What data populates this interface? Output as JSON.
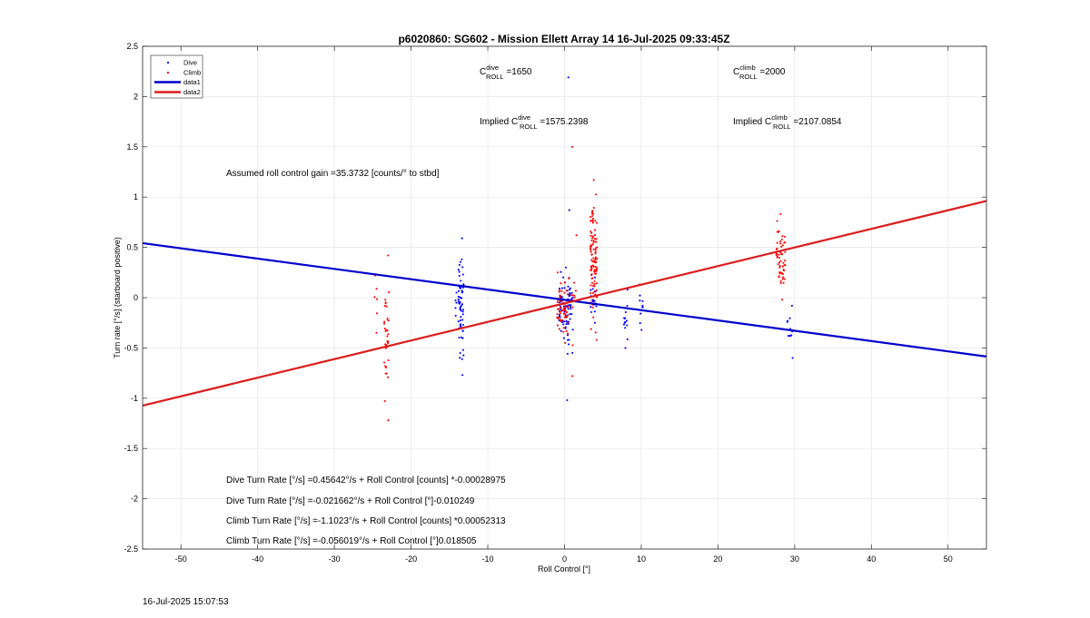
{
  "chart_data": {
    "type": "scatter",
    "title": "p6020860: SG602 - Mission Ellett Array 14 16-Jul-2025 09:33:45Z",
    "xlabel": "Roll Control [°]",
    "ylabel": "Turn rate [°/s] (starboard positive)",
    "xlim": [
      -55,
      55
    ],
    "ylim": [
      -2.5,
      2.5
    ],
    "xticks": [
      -50,
      -40,
      -30,
      -20,
      -10,
      0,
      10,
      20,
      30,
      40,
      50
    ],
    "yticks": [
      -2.5,
      -2,
      -1.5,
      -1,
      -0.5,
      0,
      0.5,
      1,
      1.5,
      2,
      2.5
    ],
    "grid": true,
    "legend_position": "top-left",
    "legend": [
      {
        "label": "Dive",
        "kind": "marker",
        "color": "#0000ff"
      },
      {
        "label": "Climb",
        "kind": "marker",
        "color": "#ff0000"
      },
      {
        "label": "data1",
        "kind": "line",
        "color": "#0000cd"
      },
      {
        "label": "data2",
        "kind": "line",
        "color": "#dd1c1c"
      }
    ],
    "fits": [
      {
        "name": "data1",
        "color": "#0000cd",
        "intercept": -0.021662,
        "slope": -0.010249
      },
      {
        "name": "data2",
        "color": "#dd1c1c",
        "intercept": -0.056019,
        "slope": 0.018505
      }
    ],
    "scatter_clusters": [
      {
        "series": "Climb",
        "color": "#ff0000",
        "x": -24.6,
        "xspread": 0.25,
        "ymin": -0.35,
        "ymax": 0.22,
        "n": 6
      },
      {
        "series": "Climb",
        "color": "#ff0000",
        "x": -23.2,
        "xspread": 0.3,
        "ymin": -1.22,
        "ymax": 0.42,
        "n": 38
      },
      {
        "series": "Dive",
        "color": "#0000ff",
        "x": -13.5,
        "xspread": 0.35,
        "ymin": -0.77,
        "ymax": 0.59,
        "n": 65
      },
      {
        "series": "Dive",
        "color": "#0000ff",
        "x": -14.2,
        "xspread": 0.15,
        "ymin": -0.18,
        "ymax": 0.05,
        "n": 5
      },
      {
        "series": "Dive",
        "color": "#0000ff",
        "x": 0.2,
        "xspread": 0.9,
        "ymin": -0.55,
        "ymax": 0.3,
        "n": 70
      },
      {
        "series": "Dive",
        "color": "#0000ff",
        "x": 0.5,
        "xspread": 0.2,
        "ymin": -1.02,
        "ymax": 0.87,
        "n": 12
      },
      {
        "series": "Climb",
        "color": "#ff0000",
        "x": -0.2,
        "xspread": 0.8,
        "ymin": -0.45,
        "ymax": 0.25,
        "n": 60
      },
      {
        "series": "Climb",
        "color": "#ff0000",
        "x": 1.2,
        "xspread": 0.5,
        "ymin": -0.78,
        "ymax": 0.62,
        "n": 10
      },
      {
        "series": "Climb",
        "color": "#ff0000",
        "x": 3.8,
        "xspread": 0.45,
        "ymin": -0.42,
        "ymax": 1.17,
        "n": 110
      },
      {
        "series": "Dive",
        "color": "#0000ff",
        "x": 3.8,
        "xspread": 0.4,
        "ymin": -0.25,
        "ymax": 0.2,
        "n": 18
      },
      {
        "series": "Dive",
        "color": "#0000ff",
        "x": 8.0,
        "xspread": 0.3,
        "ymin": -0.5,
        "ymax": 0.08,
        "n": 14
      },
      {
        "series": "Dive",
        "color": "#0000ff",
        "x": 10.0,
        "xspread": 0.2,
        "ymin": -0.32,
        "ymax": 0.13,
        "n": 10
      },
      {
        "series": "Climb",
        "color": "#ff0000",
        "x": 28.2,
        "xspread": 0.6,
        "ymin": -0.02,
        "ymax": 0.83,
        "n": 55
      },
      {
        "series": "Dive",
        "color": "#0000ff",
        "x": 29.4,
        "xspread": 0.4,
        "ymin": -0.6,
        "ymax": -0.08,
        "n": 12
      }
    ],
    "scatter_points": [
      {
        "series": "Dive",
        "color": "#0000ff",
        "x": 0.5,
        "y": 2.19
      },
      {
        "series": "Climb",
        "color": "#ff0000",
        "x": 1.0,
        "y": 1.5
      }
    ]
  },
  "annotations": {
    "croll_dive_prefix": "C",
    "croll_dive_sup": "dive",
    "croll_dive_sub": "ROLL",
    "croll_dive_value": " =1650",
    "croll_climb_prefix": "C",
    "croll_climb_sup": "climb",
    "croll_climb_sub": "ROLL",
    "croll_climb_value": " =2000",
    "implied_dive_prefix": "Implied C",
    "implied_dive_sup": "dive",
    "implied_dive_sub": "ROLL",
    "implied_dive_value": " =1575.2398",
    "implied_climb_prefix": "Implied C",
    "implied_climb_sup": "climb",
    "implied_climb_sub": "ROLL",
    "implied_climb_value": " =2107.0854",
    "gain": "Assumed roll control gain =35.3732 [counts/° to stbd]",
    "eq_dive_counts": "Dive Turn Rate [°/s] =0.45642°/s + Roll Control [counts] *-0.00028975",
    "eq_dive_deg": "Dive Turn Rate [°/s] =-0.021662°/s + Roll Control [°]-0.010249",
    "eq_climb_counts": "Climb Turn Rate [°/s] =-1.1023°/s + Roll Control [counts] *0.00052313",
    "eq_climb_deg": "Climb Turn Rate [°/s] =-0.056019°/s + Roll Control [°]0.018505"
  },
  "footer": {
    "timestamp": "16-Jul-2025 15:07:53"
  }
}
